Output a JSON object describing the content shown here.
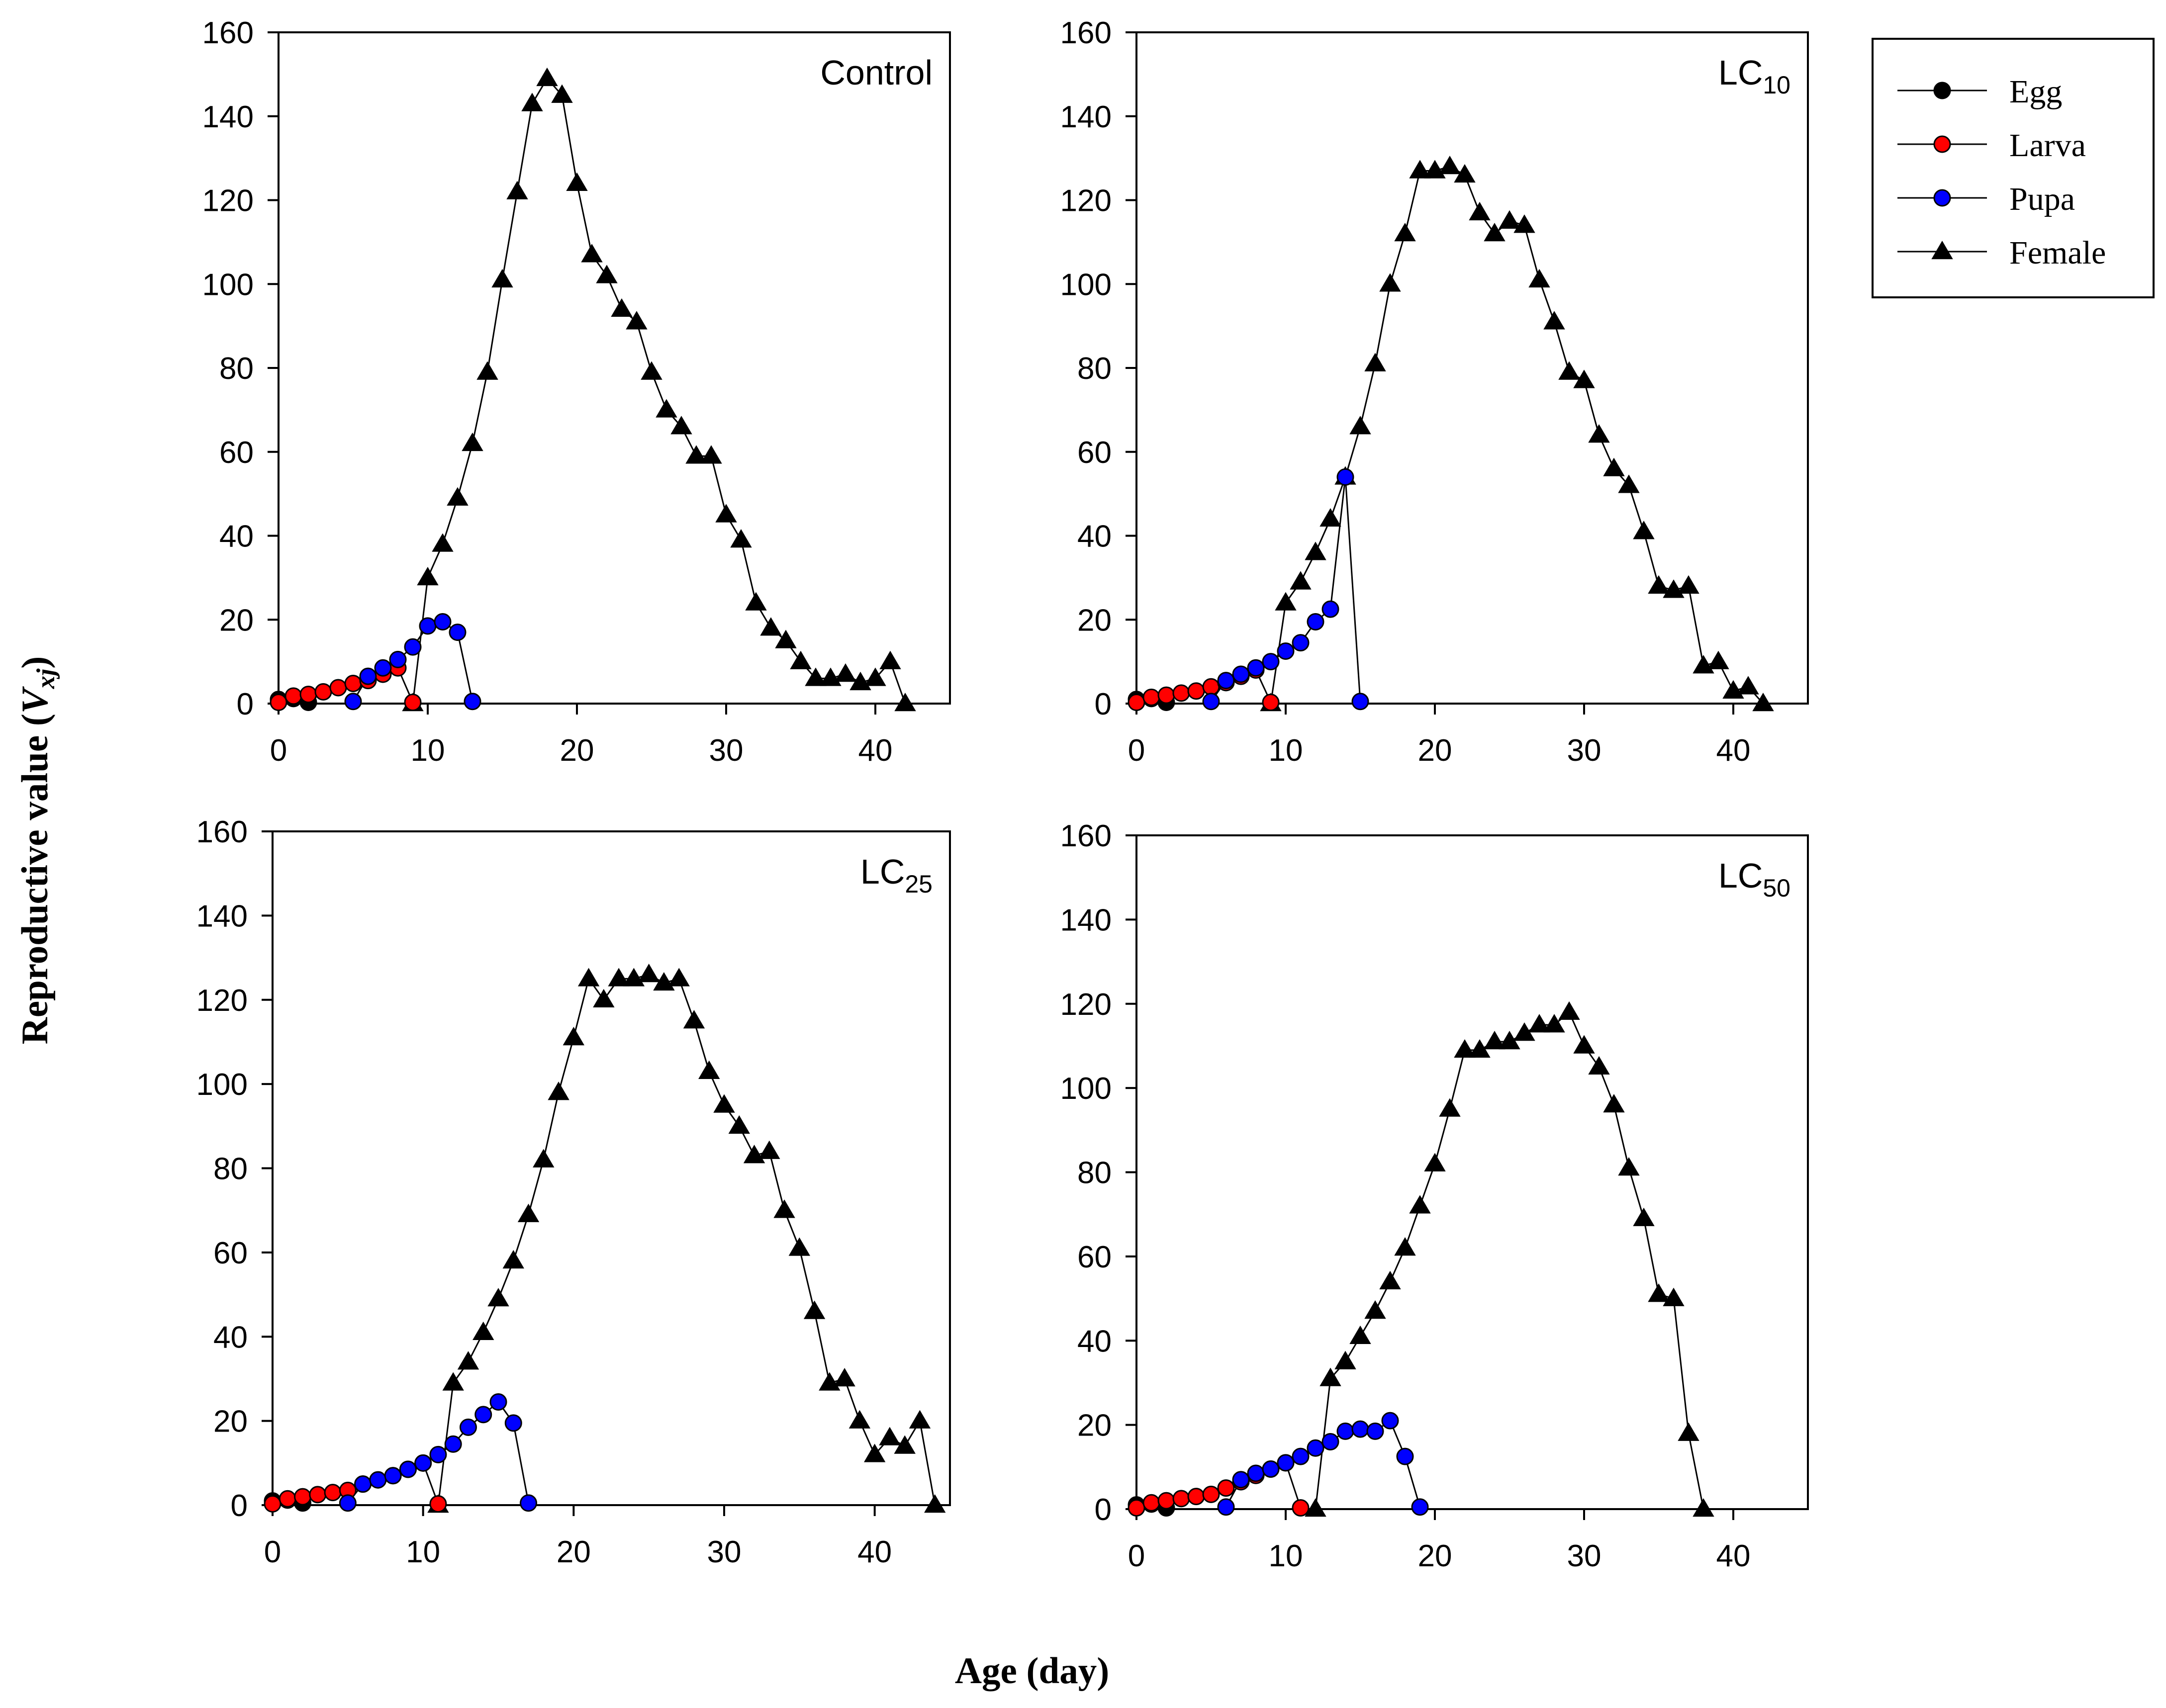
{
  "figure": {
    "ylabel_main": "Reproductive value (",
    "ylabel_sym": "V",
    "ylabel_sub": "xj",
    "ylabel_close": ")",
    "xlabel": "Age (day)"
  },
  "legend": {
    "entries": [
      {
        "label": "Egg",
        "marker": "circle",
        "color": "#000000"
      },
      {
        "label": "Larva",
        "marker": "circle",
        "color": "#ff0000"
      },
      {
        "label": "Pupa",
        "marker": "circle",
        "color": "#0000ff"
      },
      {
        "label": "Female",
        "marker": "triangle",
        "color": "#000000"
      }
    ]
  },
  "chart_data": [
    {
      "type": "line",
      "title": "Control",
      "title_main": "Control",
      "title_sub": "",
      "xlim": [
        0,
        45
      ],
      "ylim": [
        0,
        160
      ],
      "xticks": [
        0,
        10,
        20,
        30,
        40
      ],
      "yticks": [
        0,
        20,
        40,
        60,
        80,
        100,
        120,
        140,
        160
      ],
      "series": [
        {
          "name": "Egg",
          "x": [
            0,
            1,
            2
          ],
          "y": [
            1.0,
            1.2,
            0.3
          ]
        },
        {
          "name": "Larva",
          "x": [
            0,
            1,
            2,
            3,
            4,
            5,
            6,
            7,
            8,
            9
          ],
          "y": [
            0.3,
            1.8,
            2.2,
            2.8,
            3.8,
            4.8,
            5.5,
            7.0,
            8.5,
            0.3
          ]
        },
        {
          "name": "Pupa",
          "x": [
            5,
            6,
            7,
            8,
            9,
            10,
            11,
            12,
            13
          ],
          "y": [
            0.5,
            6.5,
            8.5,
            10.5,
            13.5,
            18.5,
            19.5,
            17.0,
            0.5
          ]
        },
        {
          "name": "Female",
          "x": [
            9,
            10,
            11,
            12,
            13,
            14,
            15,
            16,
            17,
            18,
            19,
            20,
            21,
            22,
            23,
            24,
            25,
            26,
            27,
            28,
            29,
            30,
            31,
            32,
            33,
            34,
            35,
            36,
            37,
            38,
            39,
            40,
            41,
            42
          ],
          "y": [
            0,
            30,
            38,
            49,
            62,
            79,
            101,
            122,
            143,
            149,
            145,
            124,
            107,
            102,
            94,
            91,
            79,
            70,
            66,
            59,
            59,
            45,
            39,
            24,
            18,
            15,
            10,
            6,
            6,
            7,
            5,
            6,
            10,
            0
          ]
        }
      ]
    },
    {
      "type": "line",
      "title": "LC10",
      "title_main": "LC",
      "title_sub": "10",
      "xlim": [
        0,
        45
      ],
      "ylim": [
        0,
        160
      ],
      "xticks": [
        0,
        10,
        20,
        30,
        40
      ],
      "yticks": [
        0,
        20,
        40,
        60,
        80,
        100,
        120,
        140,
        160
      ],
      "series": [
        {
          "name": "Egg",
          "x": [
            0,
            1,
            2
          ],
          "y": [
            1.0,
            1.2,
            0.3
          ]
        },
        {
          "name": "Larva",
          "x": [
            0,
            1,
            2,
            3,
            4,
            5,
            6,
            7,
            8,
            9
          ],
          "y": [
            0.3,
            1.5,
            2.0,
            2.5,
            3.0,
            4.0,
            5.0,
            6.5,
            8.0,
            0.3
          ]
        },
        {
          "name": "Pupa",
          "x": [
            5,
            6,
            7,
            8,
            9,
            10,
            11,
            12,
            13,
            14,
            15
          ],
          "y": [
            0.5,
            5.5,
            7.0,
            8.5,
            10.0,
            12.5,
            14.5,
            19.5,
            22.5,
            54.0,
            0.5
          ]
        },
        {
          "name": "Female",
          "x": [
            9,
            10,
            11,
            12,
            13,
            14,
            15,
            16,
            17,
            18,
            19,
            20,
            21,
            22,
            23,
            24,
            25,
            26,
            27,
            28,
            29,
            30,
            31,
            32,
            33,
            34,
            35,
            36,
            37,
            38,
            39,
            40,
            41,
            42
          ],
          "y": [
            0,
            24,
            29,
            36,
            44,
            54,
            66,
            81,
            100,
            112,
            127,
            127,
            128,
            126,
            117,
            112,
            115,
            114,
            101,
            91,
            79,
            77,
            64,
            56,
            52,
            41,
            28,
            27,
            28,
            9,
            10,
            3,
            4,
            0
          ]
        }
      ]
    },
    {
      "type": "line",
      "title": "LC25",
      "title_main": "LC",
      "title_sub": "25",
      "xlim": [
        0,
        45
      ],
      "ylim": [
        0,
        160
      ],
      "xticks": [
        0,
        10,
        20,
        30,
        40
      ],
      "yticks": [
        0,
        20,
        40,
        60,
        80,
        100,
        120,
        140,
        160
      ],
      "series": [
        {
          "name": "Egg",
          "x": [
            0,
            1,
            2
          ],
          "y": [
            1.0,
            1.2,
            0.5
          ]
        },
        {
          "name": "Larva",
          "x": [
            0,
            1,
            2,
            3,
            4,
            5,
            6,
            7,
            8,
            9,
            10,
            11
          ],
          "y": [
            0.3,
            1.5,
            2.0,
            2.5,
            3.0,
            3.5,
            5.0,
            6.0,
            7.0,
            8.5,
            10.0,
            0.3
          ]
        },
        {
          "name": "Pupa",
          "x": [
            5,
            6,
            7,
            8,
            9,
            10,
            11,
            12,
            13,
            14,
            15,
            16,
            17
          ],
          "y": [
            0.5,
            5.0,
            6.0,
            7.0,
            8.5,
            10.0,
            12.0,
            14.5,
            18.5,
            21.5,
            24.5,
            19.5,
            0.5
          ]
        },
        {
          "name": "Female",
          "x": [
            11,
            12,
            13,
            14,
            15,
            16,
            17,
            18,
            19,
            20,
            21,
            22,
            23,
            24,
            25,
            26,
            27,
            28,
            29,
            30,
            31,
            32,
            33,
            34,
            35,
            36,
            37,
            38,
            39,
            40,
            41,
            42,
            43,
            44
          ],
          "y": [
            0,
            29,
            34,
            41,
            49,
            58,
            69,
            82,
            98,
            111,
            125,
            120,
            125,
            125,
            126,
            124,
            125,
            115,
            103,
            95,
            90,
            83,
            84,
            70,
            61,
            46,
            29,
            30,
            20,
            12,
            16,
            14,
            20,
            0
          ]
        }
      ]
    },
    {
      "type": "line",
      "title": "LC50",
      "title_main": "LC",
      "title_sub": "50",
      "xlim": [
        0,
        45
      ],
      "ylim": [
        0,
        160
      ],
      "xticks": [
        0,
        10,
        20,
        30,
        40
      ],
      "yticks": [
        0,
        20,
        40,
        60,
        80,
        100,
        120,
        140,
        160
      ],
      "series": [
        {
          "name": "Egg",
          "x": [
            0,
            1,
            2
          ],
          "y": [
            1.0,
            1.2,
            0.3
          ]
        },
        {
          "name": "Larva",
          "x": [
            0,
            1,
            2,
            3,
            4,
            5,
            6,
            7,
            8,
            9,
            10,
            11
          ],
          "y": [
            0.3,
            1.5,
            2.0,
            2.5,
            3.0,
            3.5,
            5.0,
            6.5,
            8.0,
            9.5,
            11.0,
            0.3
          ]
        },
        {
          "name": "Pupa",
          "x": [
            6,
            7,
            8,
            9,
            10,
            11,
            12,
            13,
            14,
            15,
            16,
            17,
            18,
            19
          ],
          "y": [
            0.5,
            7.0,
            8.5,
            9.5,
            11.0,
            12.5,
            14.5,
            16.0,
            18.5,
            19.0,
            18.5,
            21.0,
            12.5,
            0.5
          ]
        },
        {
          "name": "Female",
          "x": [
            12,
            13,
            14,
            15,
            16,
            17,
            18,
            19,
            20,
            21,
            22,
            23,
            24,
            25,
            26,
            27,
            28,
            29,
            30,
            31,
            32,
            33,
            34,
            35,
            36,
            37,
            38
          ],
          "y": [
            0,
            31,
            35,
            41,
            47,
            54,
            62,
            72,
            82,
            95,
            109,
            109,
            111,
            111,
            113,
            115,
            115,
            118,
            110,
            105,
            96,
            81,
            69,
            51,
            50,
            18,
            0
          ]
        }
      ]
    }
  ]
}
